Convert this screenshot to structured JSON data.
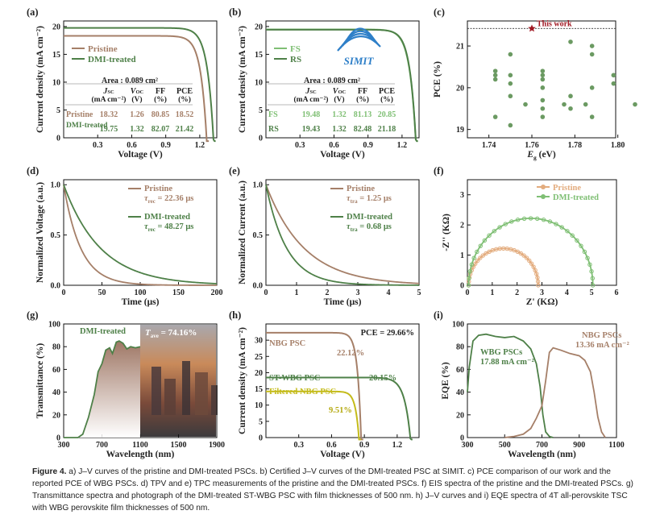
{
  "colors": {
    "pristine": "#A57F68",
    "dmi": "#4E8048",
    "ylw": "#C4BB1A",
    "orange": "#E3AC7E",
    "light_green": "#7FBF74",
    "star": "#A01722",
    "point": "#6B9A62"
  },
  "caption": {
    "figure_label": "Figure 4.",
    "text": " a) J–V curves of the pristine and DMI-treated PSCs. b) Certified J–V curves of the DMI-treated PSC at SIMIT. c) PCE comparison of our work and the reported PCE of WBG PSCs. d) TPV and e) TPC measurements of the pristine and the DMI-treated PSCs. f) EIS spectra of the pristine and the DMI-treated PSCs. g) Transmittance spectra and photograph of the DMI-treated ST-WBG PSC with film thicknesses of 500 nm. h) J–V curves and i) EQE spectra of 4T all-perovskite TSC with WBG perovskite film thicknesses of 500 nm."
  },
  "panels": {
    "a": {
      "label": "(a)",
      "ylabel": "Current density (mA cm⁻²)",
      "xlabel": "Voltage (V)",
      "xticks": [
        "0.3",
        "0.6",
        "0.9",
        "1.2"
      ],
      "yticks": [
        "0",
        "5",
        "10",
        "15",
        "20"
      ],
      "legend": [
        "Pristine",
        "DMI-treated"
      ],
      "area": "Area : 0.089 cm²",
      "table": {
        "head1": [
          "J",
          "V",
          "FF",
          "PCE"
        ],
        "head2": [
          "(mA cm⁻²)",
          "(V)",
          "(%)",
          "(%)"
        ],
        "rows": [
          {
            "name": "Pristine",
            "vals": [
              "18.32",
              "1.26",
              "80.85",
              "18.52"
            ]
          },
          {
            "name": "DMI-treated",
            "vals": [
              "19.75",
              "1.32",
              "82.07",
              "21.42"
            ]
          }
        ]
      }
    },
    "b": {
      "label": "(b)",
      "ylabel": "Current density (mA cm⁻²)",
      "xlabel": "Voltage (V)",
      "xticks": [
        "0.3",
        "0.6",
        "0.9",
        "1.2"
      ],
      "yticks": [
        "0",
        "5",
        "10",
        "15",
        "20"
      ],
      "legend": [
        "FS",
        "RS"
      ],
      "logo": "SIMIT",
      "area": "Area : 0.089 cm²",
      "table": {
        "head1": [
          "J",
          "V",
          "FF",
          "PCE"
        ],
        "head2": [
          "(mA cm⁻²)",
          "(V)",
          "(%)",
          "(%)"
        ],
        "rows": [
          {
            "name": "FS",
            "vals": [
              "19.48",
              "1.32",
              "81.13",
              "20.85"
            ]
          },
          {
            "name": "RS",
            "vals": [
              "19.43",
              "1.32",
              "82.48",
              "21.18"
            ]
          }
        ]
      }
    },
    "c": {
      "label": "(c)",
      "ylabel": "PCE (%)",
      "xlabel": "E  (eV)",
      "xlabel_sub": "g",
      "xticks": [
        "1.74",
        "1.76",
        "1.78",
        "1.80"
      ],
      "yticks": [
        "19",
        "20",
        "21"
      ],
      "star_label": "This work"
    },
    "d": {
      "label": "(d)",
      "ylabel": "Normalized Voltage (a.u.)",
      "xlabel": "Time (μs)",
      "xticks": [
        "0",
        "50",
        "100",
        "150",
        "200"
      ],
      "yticks": [
        "0.0",
        "0.5",
        "1.0"
      ],
      "legend": [
        "Pristine",
        "DMI-treated"
      ],
      "tau": [
        "τ",
        "τ"
      ],
      "tau_sub": [
        "rec",
        "rec"
      ],
      "tau_vals": [
        " = 22.36 μs",
        " = 48.27 μs"
      ]
    },
    "e": {
      "label": "(e)",
      "ylabel": "Normalized Current (a.u.)",
      "xlabel": "Time (μs)",
      "xticks": [
        "0",
        "1",
        "2",
        "3",
        "4",
        "5"
      ],
      "yticks": [
        "0.0",
        "0.5",
        "1.0"
      ],
      "legend": [
        "Pristine",
        "DMI-treated"
      ],
      "tau": [
        "τ",
        "τ"
      ],
      "tau_sub": [
        "tra",
        "tra"
      ],
      "tau_vals": [
        " = 1.25 μs",
        " = 0.68 μs"
      ]
    },
    "f": {
      "label": "(f)",
      "ylabel": "-Z'' (KΩ)",
      "xlabel": "Z' (KΩ)",
      "xticks": [
        "0",
        "1",
        "2",
        "3",
        "4",
        "5",
        "6"
      ],
      "yticks": [
        "0",
        "1",
        "2",
        "3"
      ],
      "legend": [
        "Pristine",
        "DMI-treated"
      ]
    },
    "g": {
      "label": "(g)",
      "ylabel": "Transmittance (%)",
      "xlabel": "Wavelength (nm)",
      "xticks": [
        "300",
        "700",
        "1100",
        "1500",
        "1900"
      ],
      "yticks": [
        "0",
        "20",
        "40",
        "60",
        "80",
        "100"
      ],
      "legend": "DMI-treated",
      "tave_main": "T",
      "tave_sub": "ave",
      "tave_val": " = 74.16%"
    },
    "h": {
      "label": "(h)",
      "ylabel": "Current density (mA cm⁻²)",
      "xlabel": "Voltage (V)",
      "xticks": [
        "0.3",
        "0.6",
        "0.9",
        "1.2"
      ],
      "yticks": [
        "0",
        "5",
        "10",
        "15",
        "20",
        "25",
        "30"
      ],
      "pce": "PCE = 29.66%",
      "curves": [
        {
          "name": "NBG PSC",
          "pce": "22.12%"
        },
        {
          "name": "ST-WBG PSC",
          "pce": "20.15%"
        },
        {
          "name": "Filtered NBG PSC",
          "pce": "9.51%"
        }
      ]
    },
    "i": {
      "label": "(i)",
      "ylabel": "EQE (%)",
      "xlabel": "Wavelength (nm)",
      "xticks": [
        "300",
        "500",
        "700",
        "900",
        "1100"
      ],
      "yticks": [
        "0",
        "20",
        "40",
        "60",
        "80",
        "100"
      ],
      "wbg": [
        "WBG PSCs",
        "17.88 mA cm⁻²"
      ],
      "nbg": [
        "NBG PSCs",
        "13.36 mA cm⁻²"
      ]
    }
  },
  "chart_data": [
    {
      "type": "line",
      "panel": "a",
      "title": "J–V curves",
      "xlabel": "Voltage (V)",
      "ylabel": "Current density (mA cm⁻²)",
      "xlim": [
        0,
        1.35
      ],
      "ylim": [
        0,
        21
      ],
      "series": [
        {
          "name": "Pristine",
          "jsc": 18.32,
          "voc": 1.26,
          "sharp": 24
        },
        {
          "name": "DMI-treated",
          "jsc": 19.75,
          "voc": 1.32,
          "sharp": 24
        }
      ]
    },
    {
      "type": "line",
      "panel": "b",
      "title": "Certified J–V curves",
      "xlabel": "Voltage (V)",
      "ylabel": "Current density (mA cm⁻²)",
      "xlim": [
        0,
        1.35
      ],
      "ylim": [
        0,
        21
      ],
      "series": [
        {
          "name": "FS",
          "jsc": 19.48,
          "voc": 1.32,
          "sharp": 24
        },
        {
          "name": "RS",
          "jsc": 19.43,
          "voc": 1.32,
          "sharp": 25
        }
      ]
    },
    {
      "type": "scatter",
      "panel": "c",
      "title": "PCE comparison",
      "xlabel": "Eg (eV)",
      "ylabel": "PCE (%)",
      "xlim": [
        1.73,
        1.82
      ],
      "ylim": [
        18.8,
        21.6
      ],
      "points": [
        [
          1.743,
          20.3
        ],
        [
          1.743,
          20.4
        ],
        [
          1.743,
          20.2
        ],
        [
          1.743,
          19.3
        ],
        [
          1.75,
          20.8
        ],
        [
          1.75,
          20.3
        ],
        [
          1.75,
          20.1
        ],
        [
          1.75,
          19.8
        ],
        [
          1.75,
          19.1
        ],
        [
          1.757,
          19.6
        ],
        [
          1.765,
          20.4
        ],
        [
          1.765,
          20.3
        ],
        [
          1.765,
          20.2
        ],
        [
          1.765,
          20.0
        ],
        [
          1.765,
          19.7
        ],
        [
          1.765,
          19.5
        ],
        [
          1.765,
          19.3
        ],
        [
          1.775,
          19.6
        ],
        [
          1.778,
          21.1
        ],
        [
          1.778,
          19.8
        ],
        [
          1.778,
          19.5
        ],
        [
          1.785,
          19.6
        ],
        [
          1.788,
          21.0
        ],
        [
          1.788,
          20.8
        ],
        [
          1.788,
          20.0
        ],
        [
          1.788,
          19.3
        ],
        [
          1.798,
          20.3
        ],
        [
          1.798,
          20.1
        ],
        [
          1.808,
          19.6
        ]
      ],
      "this_work": {
        "x": 1.76,
        "y": 21.42,
        "label": "This work"
      },
      "reference_line_y": 21.42
    },
    {
      "type": "line",
      "panel": "d",
      "title": "TPV",
      "xlabel": "Time (μs)",
      "ylabel": "Normalized Voltage (a.u.)",
      "xlim": [
        0,
        200
      ],
      "ylim": [
        0,
        1.05
      ],
      "series": [
        {
          "name": "Pristine",
          "tau": 22.36
        },
        {
          "name": "DMI-treated",
          "tau": 48.27
        }
      ]
    },
    {
      "type": "line",
      "panel": "e",
      "title": "TPC",
      "xlabel": "Time (μs)",
      "ylabel": "Normalized Current (a.u.)",
      "xlim": [
        0,
        5
      ],
      "ylim": [
        0,
        1.05
      ],
      "series": [
        {
          "name": "Pristine",
          "tau": 1.25
        },
        {
          "name": "DMI-treated",
          "tau": 0.68
        }
      ]
    },
    {
      "type": "line",
      "panel": "f",
      "title": "EIS spectra",
      "xlabel": "Z' (KΩ)",
      "ylabel": "-Z'' (KΩ)",
      "xlim": [
        0,
        6
      ],
      "ylim": [
        0,
        3.5
      ],
      "series": [
        {
          "name": "Pristine",
          "arc_from": 0.05,
          "arc_to": 2.85,
          "peak": 1.22
        },
        {
          "name": "DMI-treated",
          "arc_from": 0.05,
          "arc_to": 5.05,
          "peak": 2.22
        }
      ]
    },
    {
      "type": "area",
      "panel": "g",
      "title": "Transmittance",
      "xlabel": "Wavelength (nm)",
      "ylabel": "Transmittance (%)",
      "xlim": [
        300,
        1900
      ],
      "ylim": [
        0,
        100
      ],
      "tave": 74.16,
      "series": [
        {
          "name": "DMI-treated",
          "x": [
            300,
            450,
            500,
            560,
            620,
            660,
            700,
            740,
            780,
            810,
            850,
            880,
            920,
            960,
            1000,
            1050,
            1100
          ],
          "y": [
            0,
            0,
            3,
            18,
            38,
            58,
            65,
            77,
            79,
            74,
            84,
            85,
            83,
            78,
            80,
            79,
            80
          ]
        }
      ]
    },
    {
      "type": "line",
      "panel": "h",
      "title": "4T J–V curves",
      "xlabel": "Voltage (V)",
      "ylabel": "Current density (mA cm⁻²)",
      "xlim": [
        0,
        1.4
      ],
      "ylim": [
        0,
        35
      ],
      "series": [
        {
          "name": "NBG PSC",
          "jsc": 32.3,
          "voc": 0.87,
          "sharp": 26,
          "pce": 22.12
        },
        {
          "name": "ST-WBG PSC",
          "jsc": 18.5,
          "voc": 1.32,
          "sharp": 24,
          "pce": 20.15
        },
        {
          "name": "Filtered NBG PSC",
          "jsc": 14.2,
          "voc": 0.85,
          "sharp": 26,
          "pce": 9.51
        }
      ]
    },
    {
      "type": "line",
      "panel": "i",
      "title": "EQE spectra",
      "xlabel": "Wavelength (nm)",
      "ylabel": "EQE (%)",
      "xlim": [
        300,
        1100
      ],
      "ylim": [
        0,
        100
      ],
      "series": [
        {
          "name": "WBG PSCs",
          "jsc": 17.88,
          "x": [
            300,
            310,
            330,
            360,
            400,
            450,
            500,
            550,
            600,
            640,
            670,
            690,
            705,
            720,
            740,
            760
          ],
          "y": [
            40,
            62,
            85,
            90,
            91,
            89,
            88,
            89,
            85,
            78,
            65,
            45,
            20,
            5,
            1,
            0
          ]
        },
        {
          "name": "NBG PSCs",
          "jsc": 13.36,
          "x": [
            500,
            550,
            600,
            640,
            670,
            700,
            720,
            740,
            760,
            800,
            850,
            900,
            930,
            960,
            980,
            1000,
            1020,
            1040
          ],
          "y": [
            0,
            1,
            3,
            8,
            17,
            28,
            50,
            75,
            79,
            77,
            74,
            72,
            68,
            58,
            40,
            18,
            5,
            0
          ]
        }
      ]
    }
  ]
}
